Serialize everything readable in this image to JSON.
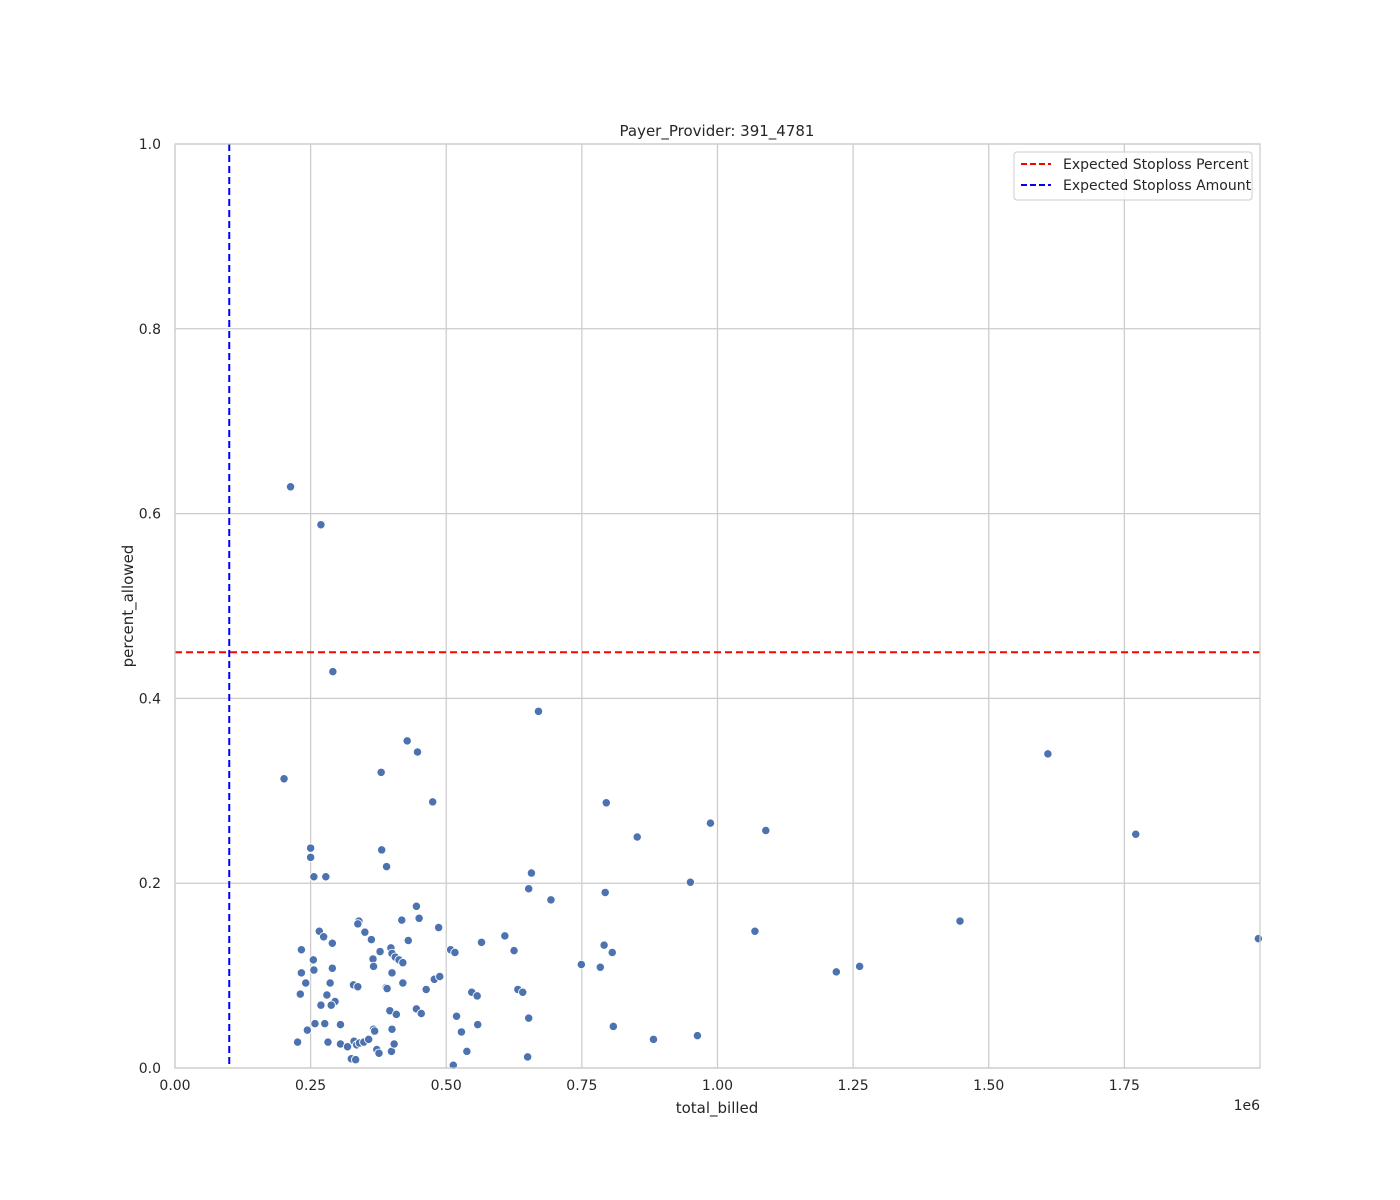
{
  "chart_data": {
    "type": "scatter",
    "title": "Payer_Provider: 391_4781",
    "xlabel": "total_billed",
    "ylabel": "percent_allowed",
    "x_offset_label": "1e6",
    "xlim": [
      0,
      2000000
    ],
    "ylim": [
      0,
      1.0
    ],
    "x_ticks": [
      0,
      250000,
      500000,
      750000,
      1000000,
      1250000,
      1500000,
      1750000
    ],
    "x_tick_labels": [
      "0.00",
      "0.25",
      "0.50",
      "0.75",
      "1.00",
      "1.25",
      "1.50",
      "1.75"
    ],
    "y_ticks": [
      0,
      0.2,
      0.4,
      0.6,
      0.8,
      1.0
    ],
    "y_tick_labels": [
      "0.0",
      "0.2",
      "0.4",
      "0.6",
      "0.8",
      "1.0"
    ],
    "grid": true,
    "legend_position": "top-right",
    "reference_lines": [
      {
        "label": "Expected Stoploss Percent",
        "orientation": "horizontal",
        "value": 0.45,
        "color": "#ff0000",
        "style": "dashed"
      },
      {
        "label": "Expected Stoploss Amount",
        "orientation": "vertical",
        "value": 100000,
        "color": "#0000ff",
        "style": "dashed"
      }
    ],
    "point_color": "#4c72b0",
    "points": [
      [
        213000,
        0.629
      ],
      [
        201000,
        0.313
      ],
      [
        291000,
        0.429
      ],
      [
        269000,
        0.588
      ],
      [
        250000,
        0.238
      ],
      [
        250000,
        0.228
      ],
      [
        256000,
        0.207
      ],
      [
        278000,
        0.207
      ],
      [
        233000,
        0.128
      ],
      [
        233000,
        0.103
      ],
      [
        241000,
        0.092
      ],
      [
        231000,
        0.08
      ],
      [
        226000,
        0.028
      ],
      [
        244000,
        0.041
      ],
      [
        255000,
        0.117
      ],
      [
        256000,
        0.106
      ],
      [
        266000,
        0.148
      ],
      [
        274000,
        0.142
      ],
      [
        290000,
        0.135
      ],
      [
        290000,
        0.108
      ],
      [
        286000,
        0.092
      ],
      [
        280000,
        0.079
      ],
      [
        295000,
        0.072
      ],
      [
        288000,
        0.068
      ],
      [
        269000,
        0.068
      ],
      [
        258000,
        0.048
      ],
      [
        276000,
        0.048
      ],
      [
        282000,
        0.028
      ],
      [
        305000,
        0.047
      ],
      [
        305000,
        0.026
      ],
      [
        318000,
        0.023
      ],
      [
        325000,
        0.01
      ],
      [
        333000,
        0.009
      ],
      [
        330000,
        0.029
      ],
      [
        335000,
        0.025
      ],
      [
        340000,
        0.027
      ],
      [
        348000,
        0.028
      ],
      [
        357000,
        0.031
      ],
      [
        366000,
        0.042
      ],
      [
        368000,
        0.04
      ],
      [
        372000,
        0.02
      ],
      [
        376000,
        0.016
      ],
      [
        399000,
        0.018
      ],
      [
        404000,
        0.026
      ],
      [
        339000,
        0.159
      ],
      [
        337000,
        0.156
      ],
      [
        350000,
        0.147
      ],
      [
        362000,
        0.139
      ],
      [
        378000,
        0.126
      ],
      [
        398000,
        0.13
      ],
      [
        400000,
        0.124
      ],
      [
        406000,
        0.12
      ],
      [
        413000,
        0.117
      ],
      [
        420000,
        0.114
      ],
      [
        365000,
        0.118
      ],
      [
        366000,
        0.11
      ],
      [
        400000,
        0.103
      ],
      [
        329000,
        0.09
      ],
      [
        337000,
        0.088
      ],
      [
        389000,
        0.087
      ],
      [
        391000,
        0.086
      ],
      [
        420000,
        0.092
      ],
      [
        396000,
        0.062
      ],
      [
        408000,
        0.058
      ],
      [
        400000,
        0.042
      ],
      [
        380000,
        0.32
      ],
      [
        381000,
        0.236
      ],
      [
        390000,
        0.218
      ],
      [
        418000,
        0.16
      ],
      [
        428000,
        0.354
      ],
      [
        447000,
        0.342
      ],
      [
        475000,
        0.288
      ],
      [
        445000,
        0.175
      ],
      [
        450000,
        0.162
      ],
      [
        486000,
        0.152
      ],
      [
        430000,
        0.138
      ],
      [
        463000,
        0.085
      ],
      [
        478000,
        0.096
      ],
      [
        488000,
        0.099
      ],
      [
        445000,
        0.064
      ],
      [
        454000,
        0.059
      ],
      [
        508000,
        0.128
      ],
      [
        516000,
        0.125
      ],
      [
        565000,
        0.136
      ],
      [
        608000,
        0.143
      ],
      [
        625000,
        0.127
      ],
      [
        519000,
        0.056
      ],
      [
        528000,
        0.039
      ],
      [
        547000,
        0.082
      ],
      [
        557000,
        0.078
      ],
      [
        632000,
        0.085
      ],
      [
        641000,
        0.082
      ],
      [
        558000,
        0.047
      ],
      [
        538000,
        0.018
      ],
      [
        513000,
        0.003
      ],
      [
        652000,
        0.054
      ],
      [
        650000,
        0.012
      ],
      [
        670000,
        0.386
      ],
      [
        657000,
        0.211
      ],
      [
        652000,
        0.194
      ],
      [
        693000,
        0.182
      ],
      [
        749000,
        0.112
      ],
      [
        784000,
        0.109
      ],
      [
        795000,
        0.287
      ],
      [
        793000,
        0.19
      ],
      [
        791000,
        0.133
      ],
      [
        806000,
        0.125
      ],
      [
        808000,
        0.045
      ],
      [
        852000,
        0.25
      ],
      [
        882000,
        0.031
      ],
      [
        950000,
        0.201
      ],
      [
        963000,
        0.035
      ],
      [
        987000,
        0.265
      ],
      [
        1069000,
        0.148
      ],
      [
        1089000,
        0.257
      ],
      [
        1219000,
        0.104
      ],
      [
        1262000,
        0.11
      ],
      [
        1447000,
        0.159
      ],
      [
        1609000,
        0.34
      ],
      [
        1771000,
        0.253
      ],
      [
        1997000,
        0.14
      ]
    ]
  }
}
